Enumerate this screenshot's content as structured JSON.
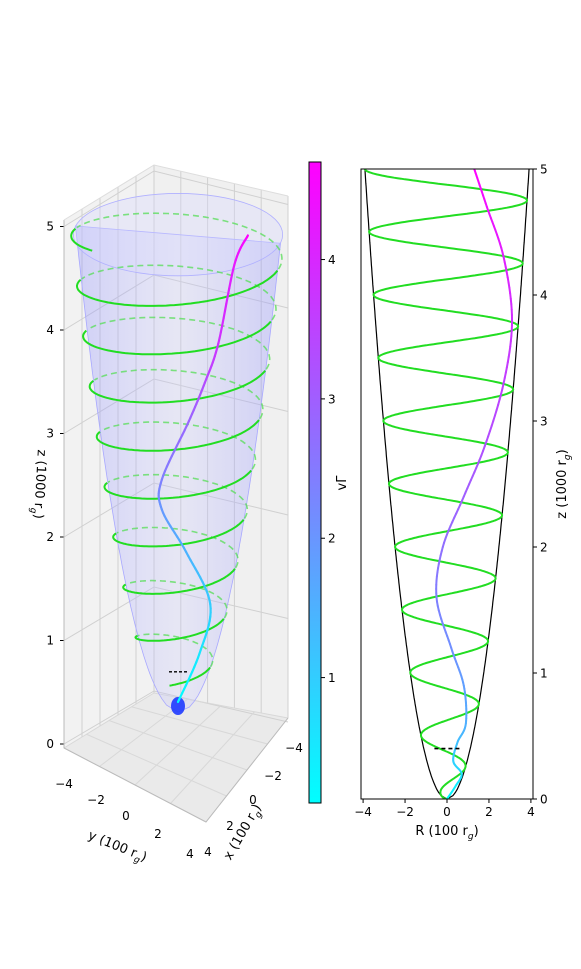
{
  "chart_data": [
    {
      "type": "line",
      "projection": "3d",
      "xlabel": "x (100 r",
      "xlabel_sub": "g",
      "ylabel": "y (100 r",
      "ylabel_sub": "g",
      "zlabel": "z (1000 r",
      "zlabel_sub": "g",
      "x_ticks": [
        "−4",
        "−2",
        "0",
        "2",
        "4"
      ],
      "y_ticks": [
        "−4",
        "−2",
        "0",
        "2",
        "4"
      ],
      "z_ticks": [
        "0",
        "1",
        "2",
        "3",
        "4",
        "5"
      ],
      "zlim": [
        0,
        5
      ],
      "surface": "paraboloid funnel, semi-transparent blue, R = 1.75·sqrt(z)",
      "grid": true,
      "series": [
        {
          "color": "#22dd22",
          "description": "helical field line wrapping the funnel (10 turns, solid front / dashed back)"
        },
        {
          "color_map": "cool",
          "description": "particle trajectory colored by vΓ"
        }
      ],
      "helix": {
        "turns": 10,
        "z_range": [
          0,
          4.8
        ]
      },
      "trajectory_points": [
        [
          0,
          0.1
        ],
        [
          0.8,
          0.6
        ],
        [
          1.2,
          1.1
        ],
        [
          0.3,
          1.6
        ],
        [
          -0.6,
          2.0
        ],
        [
          -0.6,
          2.3
        ],
        [
          0.4,
          2.9
        ],
        [
          1.0,
          3.3
        ],
        [
          1.5,
          3.7
        ],
        [
          2.1,
          4.5
        ],
        [
          2.6,
          4.8
        ]
      ]
    },
    {
      "type": "colorbar",
      "label": "vΓ",
      "ticks": [
        "1",
        "2",
        "3",
        "4"
      ],
      "range": [
        0.1,
        4.7
      ],
      "colormap": [
        "#00ffff",
        "#ff00ff"
      ]
    },
    {
      "type": "line",
      "xlabel": "R (100 r",
      "xlabel_sub": "g",
      "ylabel": "z (1000 r",
      "ylabel_sub": "g",
      "x_ticks": [
        "−4",
        "−2",
        "0",
        "2",
        "4"
      ],
      "y_ticks": [
        "0",
        "1",
        "2",
        "3",
        "4",
        "5"
      ],
      "xlim": [
        -4.1,
        4.1
      ],
      "ylim": [
        0,
        5
      ],
      "series": [
        {
          "color": "#000000",
          "description": "funnel boundary R = ±1.75·sqrt(z)"
        },
        {
          "color": "#22dd22",
          "description": "helix projected on R–z plane, 10 turns"
        },
        {
          "color_map": "cool",
          "description": "trajectory colored by vΓ"
        }
      ],
      "dashed_line": {
        "z": 0.4,
        "R": [
          -0.6,
          0.7
        ]
      },
      "trajectory_points": [
        [
          0,
          0
        ],
        [
          0.4,
          0.1
        ],
        [
          0.7,
          0.2
        ],
        [
          0.3,
          0.3
        ],
        [
          0.5,
          0.45
        ],
        [
          0.9,
          0.6
        ],
        [
          0.8,
          0.9
        ],
        [
          0.2,
          1.2
        ],
        [
          -0.5,
          1.6
        ],
        [
          -0.2,
          2.0
        ],
        [
          0.8,
          2.4
        ],
        [
          1.8,
          2.8
        ],
        [
          2.7,
          3.3
        ],
        [
          3.1,
          3.8
        ],
        [
          2.7,
          4.3
        ],
        [
          1.9,
          4.7
        ],
        [
          1.3,
          5.0
        ]
      ]
    }
  ]
}
